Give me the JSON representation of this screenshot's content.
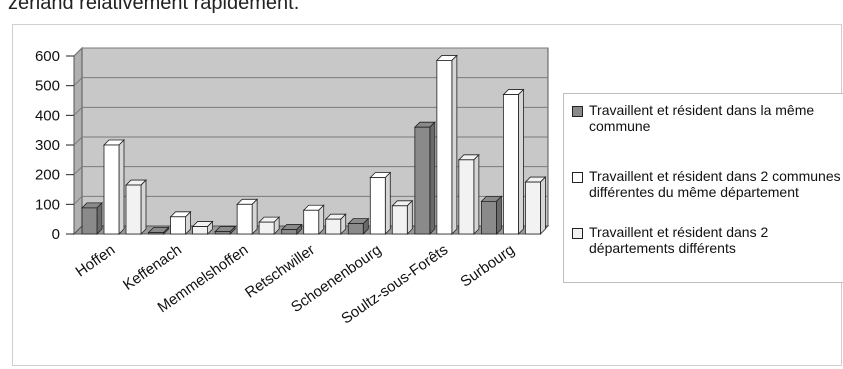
{
  "page": {
    "caption": "zerland relativement rapidement."
  },
  "chart_data": {
    "type": "bar",
    "title": "",
    "xlabel": "",
    "ylabel": "",
    "ylim": [
      0,
      600
    ],
    "yticks": [
      0,
      100,
      200,
      300,
      400,
      500,
      600
    ],
    "grid": true,
    "legend_position": "right",
    "categories": [
      "Hoffen",
      "Keffenach",
      "Memmelshoffen",
      "Retschwiller",
      "Schoenenbourg",
      "Soultz-sous-Forêts",
      "Surbourg"
    ],
    "series": [
      {
        "name": "Travaillent et résident dans la même commune",
        "color": "#8a8a8a",
        "values": [
          88,
          5,
          8,
          15,
          35,
          360,
          110
        ]
      },
      {
        "name": "Travaillent et résident dans 2 communes différentes du même département",
        "color": "#ffffff",
        "values": [
          300,
          58,
          100,
          80,
          190,
          585,
          470
        ]
      },
      {
        "name": "Travaillent et résident dans 2 départements différents",
        "color": "#f2f2f2",
        "values": [
          165,
          25,
          40,
          50,
          95,
          250,
          175
        ]
      }
    ],
    "plot_background": "#c8c8c8",
    "gridline_color": "#7a7a7a"
  }
}
